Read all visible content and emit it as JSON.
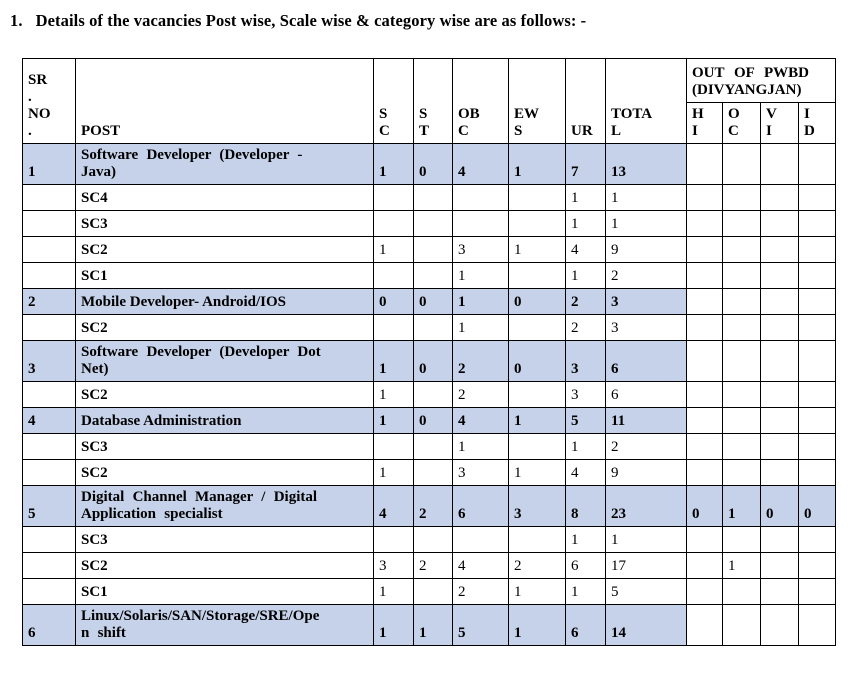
{
  "title": {
    "number": "1.",
    "text": "Details of the vacancies Post wise, Scale wise & category wise are as follows: -"
  },
  "colors": {
    "highlight": "#c5d2e9",
    "border": "#000000",
    "text": "#000000",
    "background": "#ffffff"
  },
  "table": {
    "headers": {
      "sr_no": "SR\n.\nNO\n.",
      "post": "POST",
      "sc": "S\nC",
      "st": "S\nT",
      "obc": "OB\nC",
      "ews": "EW\nS",
      "ur": "UR",
      "total": "TOTA\nL",
      "pwbd_group": "OUT OF PWBD (DIVYANGJAN)",
      "hi": "H\nI",
      "oc": "O\nC",
      "vi": "V\nI",
      "id": "I\nD"
    },
    "rows": [
      {
        "sr": "1",
        "post": "Software Developer (Developer -\nJava)",
        "sc": "1",
        "st": "0",
        "obc": "4",
        "ews": "1",
        "ur": "7",
        "total": "13",
        "hi": "",
        "oc": "",
        "vi": "",
        "id": "",
        "is_post_row": true
      },
      {
        "sr": "",
        "post": "SC4",
        "sc": "",
        "st": "",
        "obc": "",
        "ews": "",
        "ur": "1",
        "total": "1",
        "hi": "",
        "oc": "",
        "vi": "",
        "id": "",
        "is_post_row": false
      },
      {
        "sr": "",
        "post": "SC3",
        "sc": "",
        "st": "",
        "obc": "",
        "ews": "",
        "ur": "1",
        "total": "1",
        "hi": "",
        "oc": "",
        "vi": "",
        "id": "",
        "is_post_row": false
      },
      {
        "sr": "",
        "post": "SC2",
        "sc": "1",
        "st": "",
        "obc": "3",
        "ews": "1",
        "ur": "4",
        "total": "9",
        "hi": "",
        "oc": "",
        "vi": "",
        "id": "",
        "is_post_row": false
      },
      {
        "sr": "",
        "post": "SC1",
        "sc": "",
        "st": "",
        "obc": "1",
        "ews": "",
        "ur": "1",
        "total": "2",
        "hi": "",
        "oc": "",
        "vi": "",
        "id": "",
        "is_post_row": false
      },
      {
        "sr": "2",
        "post": "Mobile Developer- Android/IOS",
        "sc": "0",
        "st": "0",
        "obc": "1",
        "ews": "0",
        "ur": "2",
        "total": "3",
        "hi": "",
        "oc": "",
        "vi": "",
        "id": "",
        "is_post_row": true
      },
      {
        "sr": "",
        "post": "SC2",
        "sc": "",
        "st": "",
        "obc": "1",
        "ews": "",
        "ur": "2",
        "total": "3",
        "hi": "",
        "oc": "",
        "vi": "",
        "id": "",
        "is_post_row": false
      },
      {
        "sr": "3",
        "post": "Software Developer (Developer Dot\nNet)",
        "sc": "1",
        "st": "0",
        "obc": "2",
        "ews": "0",
        "ur": "3",
        "total": "6",
        "hi": "",
        "oc": "",
        "vi": "",
        "id": "",
        "is_post_row": true
      },
      {
        "sr": "",
        "post": "SC2",
        "sc": "1",
        "st": "",
        "obc": "2",
        "ews": "",
        "ur": "3",
        "total": "6",
        "hi": "",
        "oc": "",
        "vi": "",
        "id": "",
        "is_post_row": false
      },
      {
        "sr": "4",
        "post": "Database Administration",
        "sc": "1",
        "st": "0",
        "obc": "4",
        "ews": "1",
        "ur": "5",
        "total": "11",
        "hi": "",
        "oc": "",
        "vi": "",
        "id": "",
        "is_post_row": true
      },
      {
        "sr": "",
        "post": "SC3",
        "sc": "",
        "st": "",
        "obc": "1",
        "ews": "",
        "ur": "1",
        "total": "2",
        "hi": "",
        "oc": "",
        "vi": "",
        "id": "",
        "is_post_row": false
      },
      {
        "sr": "",
        "post": "SC2",
        "sc": "1",
        "st": "",
        "obc": "3",
        "ews": "1",
        "ur": "4",
        "total": "9",
        "hi": "",
        "oc": "",
        "vi": "",
        "id": "",
        "is_post_row": false
      },
      {
        "sr": "5",
        "post": "Digital Channel Manager / Digital\nApplication specialist",
        "sc": "4",
        "st": "2",
        "obc": "6",
        "ews": "3",
        "ur": "8",
        "total": "23",
        "hi": "0",
        "oc": "1",
        "vi": "0",
        "id": "0",
        "is_post_row": true
      },
      {
        "sr": "",
        "post": "SC3",
        "sc": "",
        "st": "",
        "obc": "",
        "ews": "",
        "ur": "1",
        "total": "1",
        "hi": "",
        "oc": "",
        "vi": "",
        "id": "",
        "is_post_row": false
      },
      {
        "sr": "",
        "post": "SC2",
        "sc": "3",
        "st": "2",
        "obc": "4",
        "ews": "2",
        "ur": "6",
        "total": "17",
        "hi": "",
        "oc": "1",
        "vi": "",
        "id": "",
        "is_post_row": false
      },
      {
        "sr": "",
        "post": "SC1",
        "sc": "1",
        "st": "",
        "obc": "2",
        "ews": "1",
        "ur": "1",
        "total": "5",
        "hi": "",
        "oc": "",
        "vi": "",
        "id": "",
        "is_post_row": false
      },
      {
        "sr": "6",
        "post": "Linux/Solaris/SAN/Storage/SRE/Ope\nn shift",
        "sc": "1",
        "st": "1",
        "obc": "5",
        "ews": "1",
        "ur": "6",
        "total": "14",
        "hi": "",
        "oc": "",
        "vi": "",
        "id": "",
        "is_post_row": true
      }
    ]
  }
}
